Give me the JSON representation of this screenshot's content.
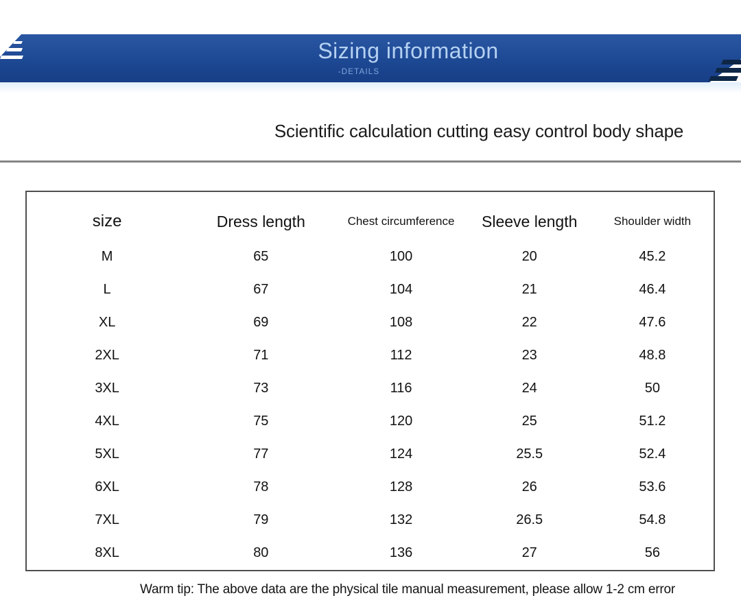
{
  "banner": {
    "title": "Sizing information",
    "subtitle": "-DETAILS",
    "decor_left_icon": "speed-stripes-left",
    "decor_right_icon": "speed-stripes-right",
    "colors": {
      "banner_blue": "#1d4893",
      "title_text": "#b5d1f2",
      "subtitle_text": "#7fa8dc",
      "right_stripe_navy": "#0e2747"
    }
  },
  "section": {
    "heading": "Scientific calculation cutting easy control body shape"
  },
  "table": {
    "columns": [
      "size",
      "Dress length",
      "Chest circumference",
      "Sleeve length",
      "Shoulder width"
    ],
    "rows": [
      [
        "M",
        "65",
        "100",
        "20",
        "45.2"
      ],
      [
        "L",
        "67",
        "104",
        "21",
        "46.4"
      ],
      [
        "XL",
        "69",
        "108",
        "22",
        "47.6"
      ],
      [
        "2XL",
        "71",
        "112",
        "23",
        "48.8"
      ],
      [
        "3XL",
        "73",
        "116",
        "24",
        "50"
      ],
      [
        "4XL",
        "75",
        "120",
        "25",
        "51.2"
      ],
      [
        "5XL",
        "77",
        "124",
        "25.5",
        "52.4"
      ],
      [
        "6XL",
        "78",
        "128",
        "26",
        "53.6"
      ],
      [
        "7XL",
        "79",
        "132",
        "26.5",
        "54.8"
      ],
      [
        "8XL",
        "80",
        "136",
        "27",
        "56"
      ]
    ]
  },
  "footer": {
    "warm_tip": "Warm tip: The above data are the physical tile manual measurement, please allow 1-2 cm error"
  }
}
